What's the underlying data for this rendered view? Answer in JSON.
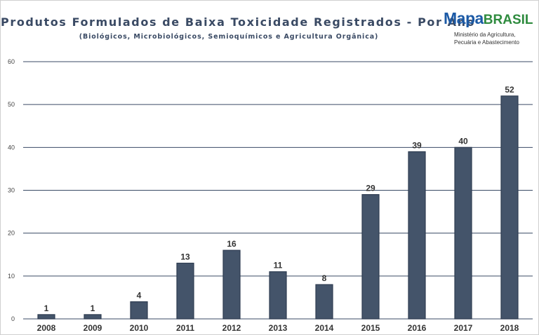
{
  "header": {
    "title": "Produtos Formulados de Baixa Toxicidade Registrados - Por Ano",
    "subtitle": "(Biológicos, Microbiológicos, Semioquímicos e Agricultura Orgânica)"
  },
  "logo": {
    "mapa": "Mapa",
    "brasil": "BRASIL",
    "line1": "Ministério da Agricultura,",
    "line2": "Pecuária e Abastecimento",
    "mapa_color": "#1c5aa6",
    "brasil_color": "#2e8b3e"
  },
  "chart_data": {
    "type": "bar",
    "title": "Produtos Formulados de Baixa Toxicidade Registrados - Por Ano",
    "subtitle": "(Biológicos, Microbiológicos, Semioquímicos e Agricultura Orgânica)",
    "categories": [
      "2008",
      "2009",
      "2010",
      "2011",
      "2012",
      "2013",
      "2014",
      "2015",
      "2016",
      "2017",
      "2018"
    ],
    "values": [
      1,
      1,
      4,
      13,
      16,
      11,
      8,
      29,
      39,
      40,
      52
    ],
    "ylim": [
      0,
      60
    ],
    "yticks": [
      0,
      10,
      20,
      30,
      40,
      50,
      60
    ],
    "xlabel": "",
    "ylabel": "",
    "grid": true,
    "data_labels": true,
    "legend": false,
    "bar_color": "#44546a",
    "bar_edge_color": "#2f3d52",
    "grid_color": "#3a4a64"
  }
}
